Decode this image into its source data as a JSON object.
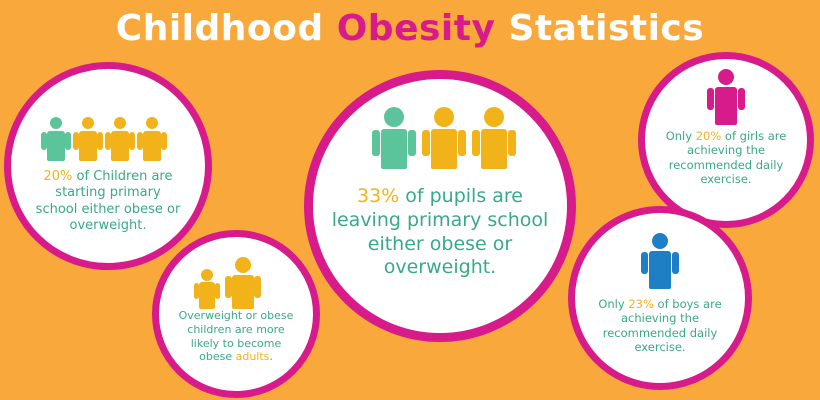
{
  "title": {
    "part1": "Childhood ",
    "part2": "Obesity",
    "part3": " Statistics"
  },
  "stats": {
    "children_20": {
      "highlight": "20%",
      "text": " of Children are starting primary school either obese or overweight."
    },
    "pupils_33": {
      "highlight": "33%",
      "text": " of pupils are leaving primary school either obese or overweight."
    },
    "adults": {
      "text": "Overweight or obese children are more likely to become obese ",
      "highlight": "adults",
      "tail": "."
    },
    "girls": {
      "prefix": "Only ",
      "highlight": "20%",
      "text": " of girls are achieving the recommended daily exercise."
    },
    "boys": {
      "prefix": "Only ",
      "highlight": "23%",
      "text": " of boys are achieving the recommended daily exercise."
    }
  },
  "colors": {
    "background": "#f9a83c",
    "ring": "#d81b8a",
    "green": "#5cc49b",
    "yellow": "#f2b21a",
    "magenta": "#d81b8a",
    "blue": "#1f7fc4"
  },
  "icons": [
    "person-icon"
  ]
}
